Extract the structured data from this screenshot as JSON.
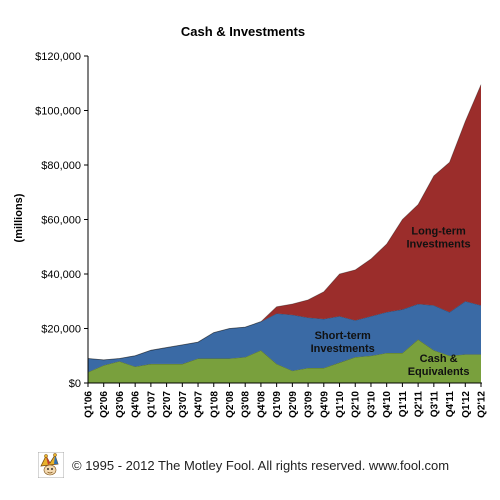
{
  "chart_data": {
    "type": "area",
    "stacked": true,
    "title": "Cash & Investments",
    "ylabel": "(millions)",
    "xlabel": "",
    "ylim": [
      0,
      120000
    ],
    "yticks": [
      {
        "value": 0,
        "label": "$0"
      },
      {
        "value": 20000,
        "label": "$20,000"
      },
      {
        "value": 40000,
        "label": "$40,000"
      },
      {
        "value": 60000,
        "label": "$60,000"
      },
      {
        "value": 80000,
        "label": "$80,000"
      },
      {
        "value": 100000,
        "label": "$100,000"
      },
      {
        "value": 120000,
        "label": "$120,000"
      }
    ],
    "categories": [
      "Q1'06",
      "Q2'06",
      "Q3'06",
      "Q4'06",
      "Q1'07",
      "Q2'07",
      "Q3'07",
      "Q4'07",
      "Q1'08",
      "Q2'08",
      "Q3'08",
      "Q4'08",
      "Q1'09",
      "Q2'09",
      "Q3'09",
      "Q4'09",
      "Q1'10",
      "Q2'10",
      "Q3'10",
      "Q4'10",
      "Q1'11",
      "Q2'11",
      "Q3'11",
      "Q4'11",
      "Q1'12",
      "Q2'12"
    ],
    "series": [
      {
        "name": "Cash & Equivalents",
        "color": "#79a03d",
        "values": [
          4000,
          6500,
          8000,
          6000,
          7000,
          7000,
          7000,
          9000,
          9000,
          9000,
          9500,
          12000,
          7000,
          4500,
          5500,
          5500,
          7500,
          9500,
          10000,
          11000,
          11000,
          16000,
          12000,
          10000,
          10500,
          10500
        ]
      },
      {
        "name": "Short-term Investments",
        "color": "#3a6aa5",
        "values": [
          5000,
          2000,
          1000,
          4000,
          5000,
          6000,
          7000,
          6000,
          9500,
          11000,
          11000,
          10500,
          18500,
          20500,
          18500,
          18000,
          17000,
          13500,
          14500,
          15000,
          16000,
          13000,
          16500,
          16000,
          19500,
          18000
        ]
      },
      {
        "name": "Long-term Investments",
        "color": "#9b2d2b",
        "values": [
          0,
          0,
          0,
          0,
          0,
          0,
          0,
          0,
          0,
          0,
          0,
          0,
          2500,
          4000,
          6500,
          10000,
          15500,
          18500,
          21000,
          25000,
          33000,
          36500,
          47500,
          55000,
          66000,
          81000
        ]
      }
    ],
    "annotations": [
      {
        "lines": [
          "Long-term",
          "Investments"
        ],
        "series": "Long-term Investments"
      },
      {
        "lines": [
          "Short-term",
          "Investments"
        ],
        "series": "Short-term Investments"
      },
      {
        "lines": [
          "Cash &",
          "Equivalents"
        ],
        "series": "Cash & Equivalents"
      }
    ],
    "grid": false,
    "legend": "none"
  },
  "footer": {
    "text": "© 1995 - 2012 The Motley Fool. All rights reserved. www.fool.com",
    "logo_icon": "jester-hat-logo"
  }
}
